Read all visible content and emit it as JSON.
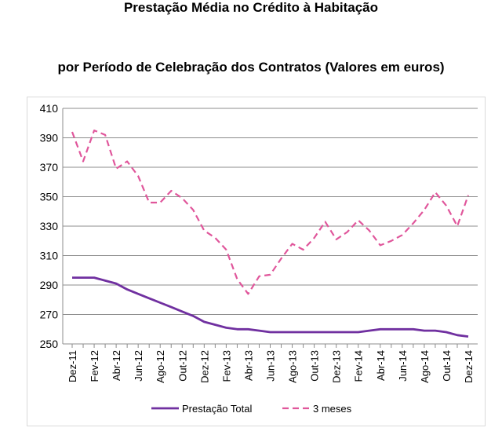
{
  "chart_data": {
    "type": "line",
    "title": "Prestação Média no Crédito à Habitação",
    "subtitle": "por Período de Celebração dos Contratos (Valores em euros)",
    "ylim": [
      250,
      410
    ],
    "yticks": [
      250,
      270,
      290,
      310,
      330,
      350,
      370,
      390,
      410
    ],
    "grid": true,
    "legend_position": "bottom",
    "categories": [
      "Dez-11",
      "Jan-12",
      "Fev-12",
      "Mar-12",
      "Abr-12",
      "Mai-12",
      "Jun-12",
      "Jul-12",
      "Ago-12",
      "Set-12",
      "Out-12",
      "Nov-12",
      "Dez-12",
      "Jan-13",
      "Fev-13",
      "Mar-13",
      "Abr-13",
      "Mai-13",
      "Jun-13",
      "Jul-13",
      "Ago-13",
      "Set-13",
      "Out-13",
      "Nov-13",
      "Dez-13",
      "Jan-14",
      "Fev-14",
      "Mar-14",
      "Abr-14",
      "Mai-14",
      "Jun-14",
      "Jul-14",
      "Ago-14",
      "Set-14",
      "Out-14",
      "Nov-14",
      "Dez-14"
    ],
    "tick_labels": [
      "Dez-11",
      "Fev-12",
      "Abr-12",
      "Jun-12",
      "Ago-12",
      "Out-12",
      "Dez-12",
      "Fev-13",
      "Abr-13",
      "Jun-13",
      "Ago-13",
      "Out-13",
      "Dez-13",
      "Fev-14",
      "Abr-14",
      "Jun-14",
      "Ago-14",
      "Out-14",
      "Dez-14"
    ],
    "series": [
      {
        "name": "Prestação Total",
        "color": "#7030a0",
        "style": "solid",
        "values": [
          295,
          295,
          295,
          293,
          291,
          287,
          284,
          281,
          278,
          275,
          272,
          269,
          265,
          263,
          261,
          260,
          260,
          259,
          258,
          258,
          258,
          258,
          258,
          258,
          258,
          258,
          258,
          259,
          260,
          260,
          260,
          260,
          259,
          259,
          258,
          256,
          255
        ]
      },
      {
        "name": "3 meses",
        "color": "#e0569b",
        "style": "dashed",
        "values": [
          394,
          374,
          395,
          392,
          369,
          374,
          364,
          346,
          346,
          354,
          349,
          341,
          327,
          322,
          314,
          294,
          284,
          296,
          297,
          308,
          318,
          314,
          322,
          333,
          321,
          326,
          334,
          327,
          317,
          320,
          324,
          332,
          341,
          353,
          344,
          330,
          351
        ]
      }
    ]
  }
}
